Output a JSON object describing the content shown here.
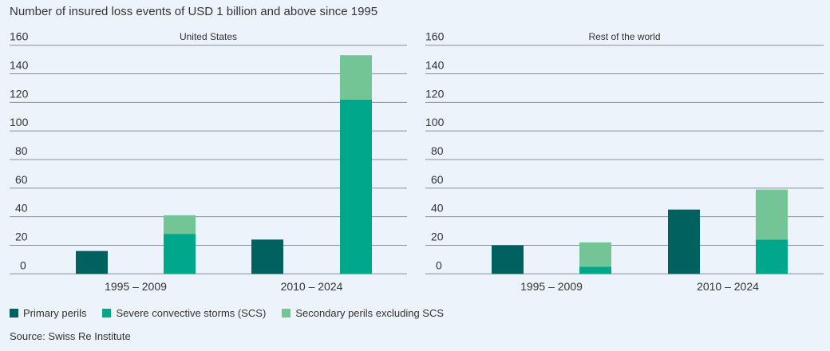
{
  "title": "Number of insured loss events of USD 1 billion and above since 1995",
  "source": "Source: Swiss Re Institute",
  "colors": {
    "primary": "#00615f",
    "scs": "#00a78a",
    "secondary": "#74c595",
    "grid": "#8a9099"
  },
  "chart_data": [
    {
      "type": "bar",
      "title": "United States",
      "categories": [
        "1995 – 2009",
        "2010 – 2024"
      ],
      "yticks": [
        "0",
        "20",
        "40",
        "60",
        "80",
        "100",
        "120",
        "140",
        "160"
      ],
      "ylim": [
        0,
        160
      ],
      "series": [
        {
          "name": "Primary perils",
          "values": [
            16,
            24
          ]
        },
        {
          "name": "Severe convective storms (SCS)",
          "values": [
            28,
            122
          ]
        },
        {
          "name": "Secondary perils excluding SCS",
          "values": [
            13,
            31
          ]
        }
      ]
    },
    {
      "type": "bar",
      "title": "Rest of the world",
      "categories": [
        "1995 – 2009",
        "2010 – 2024"
      ],
      "yticks": [
        "0",
        "20",
        "40",
        "60",
        "80",
        "100",
        "120",
        "140",
        "160"
      ],
      "ylim": [
        0,
        160
      ],
      "series": [
        {
          "name": "Primary perils",
          "values": [
            20,
            45
          ]
        },
        {
          "name": "Severe convective storms (SCS)",
          "values": [
            5,
            24
          ]
        },
        {
          "name": "Secondary perils excluding SCS",
          "values": [
            17,
            35
          ]
        }
      ]
    }
  ],
  "legend": [
    "Primary perils",
    "Severe convective storms (SCS)",
    "Secondary perils excluding SCS"
  ]
}
